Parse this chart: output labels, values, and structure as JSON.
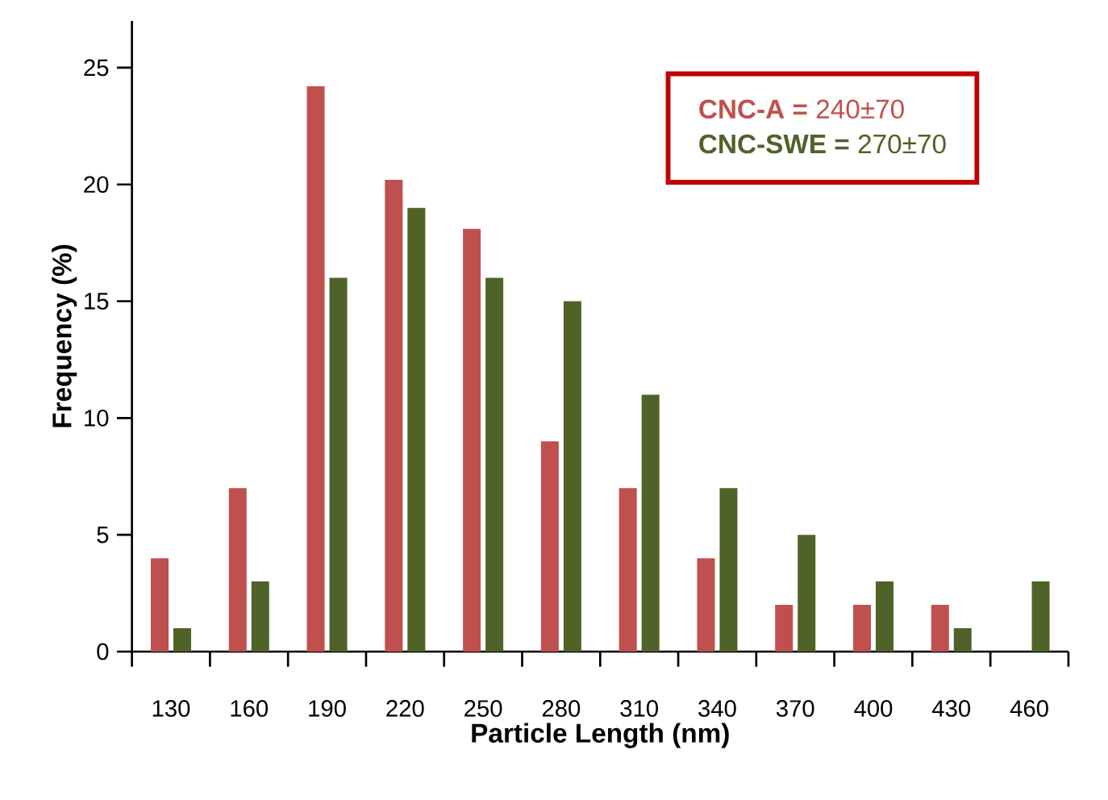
{
  "chart_data": {
    "type": "bar",
    "xlabel": "Particle Length (nm)",
    "ylabel": "Frequency (%)",
    "categories": [
      "130",
      "160",
      "190",
      "220",
      "250",
      "280",
      "310",
      "340",
      "370",
      "400",
      "430",
      "460"
    ],
    "series": [
      {
        "name": "**CNC-A =** 240±70",
        "color": "#c0504d",
        "values": [
          4,
          7,
          24.2,
          20.2,
          18.1,
          9,
          7,
          4,
          2,
          2,
          2,
          0
        ]
      },
      {
        "name": "**CNC-SWE =** 270±70",
        "color": "#4f6228",
        "values": [
          1,
          3,
          16,
          19,
          16,
          15,
          11,
          7,
          5,
          3,
          1,
          3
        ]
      }
    ],
    "ylim": [
      0,
      27
    ],
    "yticks": [
      0,
      5,
      10,
      15,
      20,
      25
    ],
    "grid": false,
    "legend": "top right"
  }
}
